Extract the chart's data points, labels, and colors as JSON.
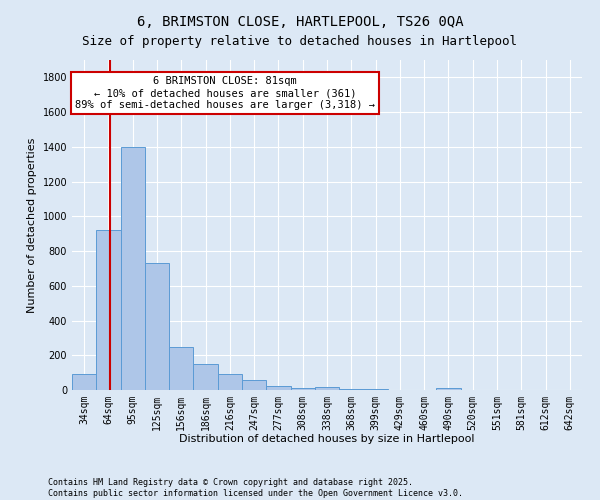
{
  "title_line1": "6, BRIMSTON CLOSE, HARTLEPOOL, TS26 0QA",
  "title_line2": "Size of property relative to detached houses in Hartlepool",
  "xlabel": "Distribution of detached houses by size in Hartlepool",
  "ylabel": "Number of detached properties",
  "bar_labels": [
    "34sqm",
    "64sqm",
    "95sqm",
    "125sqm",
    "156sqm",
    "186sqm",
    "216sqm",
    "247sqm",
    "277sqm",
    "308sqm",
    "338sqm",
    "368sqm",
    "399sqm",
    "429sqm",
    "460sqm",
    "490sqm",
    "520sqm",
    "551sqm",
    "581sqm",
    "612sqm",
    "642sqm"
  ],
  "bar_values": [
    90,
    920,
    1400,
    730,
    250,
    150,
    90,
    55,
    25,
    10,
    20,
    5,
    5,
    0,
    0,
    10,
    0,
    0,
    0,
    0,
    0
  ],
  "bar_color": "#aec6e8",
  "bar_edge_color": "#5b9bd5",
  "vline_color": "#cc0000",
  "annotation_text": "6 BRIMSTON CLOSE: 81sqm\n← 10% of detached houses are smaller (361)\n89% of semi-detached houses are larger (3,318) →",
  "annotation_box_color": "#ffffff",
  "annotation_box_edge": "#cc0000",
  "ylim": [
    0,
    1900
  ],
  "yticks": [
    0,
    200,
    400,
    600,
    800,
    1000,
    1200,
    1400,
    1600,
    1800
  ],
  "footer_line1": "Contains HM Land Registry data © Crown copyright and database right 2025.",
  "footer_line2": "Contains public sector information licensed under the Open Government Licence v3.0.",
  "bg_color": "#dce8f5",
  "plot_bg_color": "#dce8f5",
  "grid_color": "#ffffff",
  "title_fontsize": 10,
  "subtitle_fontsize": 9,
  "axis_label_fontsize": 8,
  "tick_fontsize": 7,
  "footer_fontsize": 6,
  "annotation_fontsize": 7.5
}
